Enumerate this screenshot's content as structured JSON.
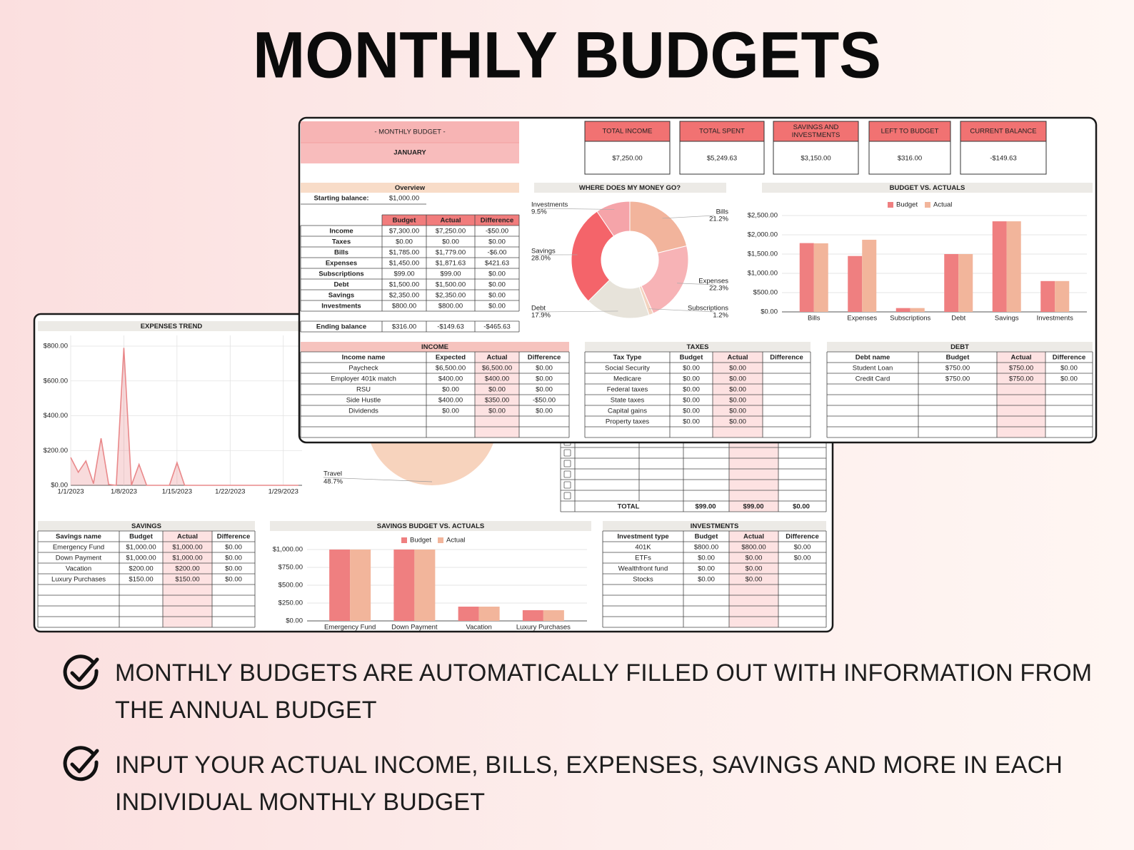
{
  "header": {
    "title": "MONTHLY BUDGETS"
  },
  "front": {
    "banner": {
      "title": "- MONTHLY BUDGET -",
      "month": "JANUARY"
    },
    "kpis": [
      {
        "label": "TOTAL INCOME",
        "value": "$7,250.00"
      },
      {
        "label": "TOTAL SPENT",
        "value": "$5,249.63"
      },
      {
        "label": "SAVINGS AND INVESTMENTS",
        "value": "$3,150.00"
      },
      {
        "label": "LEFT TO BUDGET",
        "value": "$316.00"
      },
      {
        "label": "CURRENT BALANCE",
        "value": "-$149.63"
      }
    ],
    "overview": {
      "title": "Overview",
      "starting_label": "Starting balance:",
      "starting_value": "$1,000.00",
      "headers": [
        "Budget",
        "Actual",
        "Difference"
      ],
      "rows": [
        [
          "Income",
          "$7,300.00",
          "$7,250.00",
          "-$50.00"
        ],
        [
          "Taxes",
          "$0.00",
          "$0.00",
          "$0.00"
        ],
        [
          "Bills",
          "$1,785.00",
          "$1,779.00",
          "-$6.00"
        ],
        [
          "Expenses",
          "$1,450.00",
          "$1,871.63",
          "$421.63"
        ],
        [
          "Subscriptions",
          "$99.00",
          "$99.00",
          "$0.00"
        ],
        [
          "Debt",
          "$1,500.00",
          "$1,500.00",
          "$0.00"
        ],
        [
          "Savings",
          "$2,350.00",
          "$2,350.00",
          "$0.00"
        ],
        [
          "Investments",
          "$800.00",
          "$800.00",
          "$0.00"
        ]
      ],
      "ending": [
        "Ending balance",
        "$316.00",
        "-$149.63",
        "-$465.63"
      ]
    },
    "donut": {
      "type": "pie",
      "title": "WHERE DOES MY MONEY GO?",
      "categories": [
        "Bills",
        "Expenses",
        "Subscriptions",
        "Debt",
        "Savings",
        "Investments"
      ],
      "values": [
        21.2,
        22.3,
        1.2,
        17.9,
        28.0,
        9.5
      ],
      "value_labels": [
        "21.2%",
        "22.3%",
        "1.2%",
        "17.9%",
        "28.0%",
        "9.5%"
      ],
      "colors": [
        "#f2b49c",
        "#f7b3b6",
        "#f3d3bf",
        "#e7e3da",
        "#f4646a",
        "#f5a4a9"
      ]
    },
    "budget_chart": {
      "type": "bar",
      "title": "BUDGET VS. ACTUALS",
      "categories": [
        "Bills",
        "Expenses",
        "Subscriptions",
        "Debt",
        "Savings",
        "Investments"
      ],
      "series": [
        {
          "name": "Budget",
          "color": "#ef7f80",
          "values": [
            1785,
            1450,
            99,
            1500,
            2350,
            800
          ]
        },
        {
          "name": "Actual",
          "color": "#f2b59b",
          "values": [
            1779,
            1871.63,
            99,
            1500,
            2350,
            800
          ]
        }
      ],
      "ylim": [
        0,
        2500
      ],
      "yticks": [
        {
          "value": 0,
          "label": "$0.00"
        },
        {
          "value": 500,
          "label": "$500.00"
        },
        {
          "value": 1000,
          "label": "$1,000.00"
        },
        {
          "value": 1500,
          "label": "$1,500.00"
        },
        {
          "value": 2000,
          "label": "$2,000.00"
        },
        {
          "value": 2500,
          "label": "$2,500.00"
        }
      ]
    },
    "income": {
      "title": "INCOME",
      "headers": [
        "Income name",
        "Expected",
        "Actual",
        "Difference"
      ],
      "rows": [
        [
          "Paycheck",
          "$6,500.00",
          "$6,500.00",
          "$0.00"
        ],
        [
          "Employer 401k match",
          "$400.00",
          "$400.00",
          "$0.00"
        ],
        [
          "RSU",
          "$0.00",
          "$0.00",
          "$0.00"
        ],
        [
          "Side Hustle",
          "$400.00",
          "$350.00",
          "-$50.00"
        ],
        [
          "Dividends",
          "$0.00",
          "$0.00",
          "$0.00"
        ]
      ]
    },
    "taxes": {
      "title": "TAXES",
      "headers": [
        "Tax Type",
        "Budget",
        "Actual",
        "Difference"
      ],
      "rows": [
        [
          "Social Security",
          "$0.00",
          "$0.00"
        ],
        [
          "Medicare",
          "$0.00",
          "$0.00"
        ],
        [
          "Federal taxes",
          "$0.00",
          "$0.00"
        ],
        [
          "State taxes",
          "$0.00",
          "$0.00"
        ],
        [
          "Capital gains",
          "$0.00",
          "$0.00"
        ],
        [
          "Property taxes",
          "$0.00",
          "$0.00"
        ]
      ]
    },
    "debt": {
      "title": "DEBT",
      "headers": [
        "Debt name",
        "Budget",
        "Actual",
        "Difference"
      ],
      "rows": [
        [
          "Student Loan",
          "$750.00",
          "$750.00",
          "$0.00"
        ],
        [
          "Credit Card",
          "$750.00",
          "$750.00",
          "$0.00"
        ]
      ]
    }
  },
  "back": {
    "trend": {
      "type": "line",
      "title": "EXPENSES TREND",
      "x": [
        "1/1/2023",
        "1/2/2023",
        "1/3/2023",
        "1/4/2023",
        "1/5/2023",
        "1/6/2023",
        "1/7/2023",
        "1/8/2023",
        "1/9/2023",
        "1/10/2023",
        "1/11/2023",
        "1/12/2023",
        "1/13/2023",
        "1/14/2023",
        "1/15/2023",
        "1/16/2023",
        "1/17/2023",
        "1/18/2023",
        "1/19/2023",
        "1/20/2023",
        "1/21/2023",
        "1/22/2023",
        "1/23/2023",
        "1/24/2023",
        "1/25/2023",
        "1/26/2023",
        "1/27/2023",
        "1/28/2023",
        "1/29/2023",
        "1/30/2023",
        "1/31/2023"
      ],
      "xticks": [
        "1/1/2023",
        "1/8/2023",
        "1/15/2023",
        "1/22/2023",
        "1/29/2023"
      ],
      "series": [
        {
          "color": "#e9888a",
          "values": [
            160,
            75,
            140,
            10,
            270,
            5,
            0,
            790,
            0,
            120,
            0,
            0,
            0,
            0,
            130,
            0,
            0,
            0,
            0,
            0,
            0,
            0,
            0,
            0,
            0,
            0,
            0,
            0,
            0,
            0,
            0
          ]
        }
      ],
      "ylim": [
        0,
        800
      ],
      "yticks": [
        {
          "value": 0,
          "label": "$0.00"
        },
        {
          "value": 200,
          "label": "$200.00"
        },
        {
          "value": 400,
          "label": "$400.00"
        },
        {
          "value": 600,
          "label": "$600.00"
        },
        {
          "value": 800,
          "label": "$800.00"
        }
      ]
    },
    "travel": {
      "label": "Travel",
      "value_label": "48.7%"
    },
    "subscriptions": {
      "total": [
        "TOTAL",
        "$99.00",
        "$99.00",
        "$0.00"
      ]
    },
    "savings": {
      "title": "SAVINGS",
      "headers": [
        "Savings name",
        "Budget",
        "Actual",
        "Difference"
      ],
      "rows": [
        [
          "Emergency Fund",
          "$1,000.00",
          "$1,000.00",
          "$0.00"
        ],
        [
          "Down Payment",
          "$1,000.00",
          "$1,000.00",
          "$0.00"
        ],
        [
          "Vacation",
          "$200.00",
          "$200.00",
          "$0.00"
        ],
        [
          "Luxury Purchases",
          "$150.00",
          "$150.00",
          "$0.00"
        ]
      ]
    },
    "savings_chart": {
      "type": "bar",
      "title": "SAVINGS BUDGET VS. ACTUALS",
      "categories": [
        "Emergency Fund",
        "Down Payment",
        "Vacation",
        "Luxury Purchases"
      ],
      "series": [
        {
          "name": "Budget",
          "color": "#ef7f80",
          "values": [
            1000,
            1000,
            200,
            150
          ]
        },
        {
          "name": "Actual",
          "color": "#f2b59b",
          "values": [
            1000,
            1000,
            200,
            150
          ]
        }
      ],
      "ylim": [
        0,
        1000
      ],
      "yticks": [
        {
          "value": 0,
          "label": "$0.00"
        },
        {
          "value": 250,
          "label": "$250.00"
        },
        {
          "value": 500,
          "label": "$500.00"
        },
        {
          "value": 750,
          "label": "$750.00"
        },
        {
          "value": 1000,
          "label": "$1,000.00"
        }
      ]
    },
    "investments": {
      "title": "INVESTMENTS",
      "headers": [
        "Investment type",
        "Budget",
        "Actual",
        "Difference"
      ],
      "rows": [
        [
          "401K",
          "$800.00",
          "$800.00",
          "$0.00"
        ],
        [
          "ETFs",
          "$0.00",
          "$0.00",
          "$0.00"
        ],
        [
          "Wealthfront fund",
          "$0.00",
          "$0.00"
        ],
        [
          "Stocks",
          "$0.00",
          "$0.00"
        ]
      ]
    }
  },
  "bullets": [
    "MONTHLY BUDGETS ARE AUTOMATICALLY FILLED OUT WITH INFORMATION FROM THE ANNUAL BUDGET",
    "INPUT YOUR ACTUAL INCOME, BILLS, EXPENSES, SAVINGS AND MORE IN EACH INDIVIDUAL MONTHLY BUDGET"
  ]
}
